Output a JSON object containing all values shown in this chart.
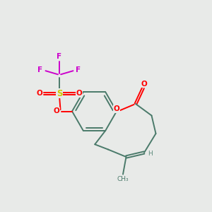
{
  "background_color": "#e8eae8",
  "bond_color": "#4a7a6a",
  "oxygen_color": "#ff0000",
  "fluorine_color": "#cc00cc",
  "sulfur_color": "#cccc00",
  "hydrogen_color": "#5a8a7a",
  "line_width": 1.4,
  "figsize": [
    3.0,
    3.0
  ],
  "dpi": 100,
  "xlim": [
    0,
    10
  ],
  "ylim": [
    0,
    10
  ]
}
